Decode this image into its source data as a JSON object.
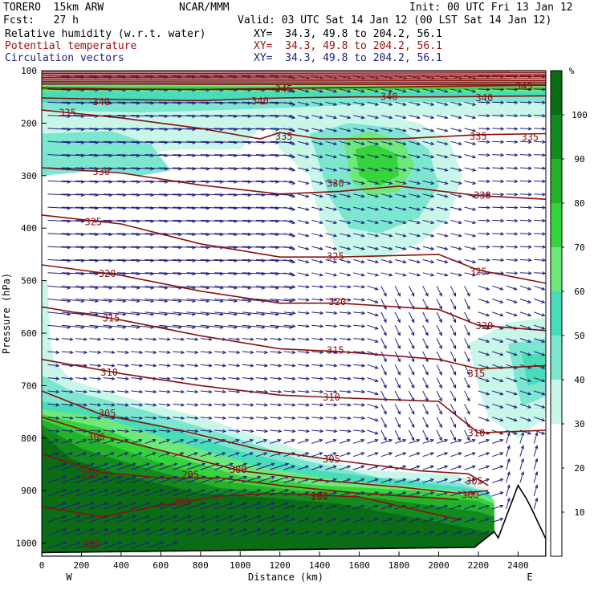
{
  "header": {
    "model": "TORERO  15km ARW",
    "center": "NCAR/MMM",
    "init": "Init: 00 UTC Fri 13 Jan 12",
    "fcst": "Fcst:   27 h",
    "valid": "Valid: 03 UTC Sat 14 Jan 12 (00 LST Sat 14 Jan 12)",
    "fields": [
      {
        "name": "Relative humidity (w.r.t. water)",
        "xy": "XY=  34.3, 49.8 to 204.2, 56.1",
        "color": "#000000"
      },
      {
        "name": "Potential temperature",
        "xy": "XY=  34.3, 49.8 to 204.2, 56.1",
        "color": "#a01010"
      },
      {
        "name": "Circulation vectors",
        "xy": "XY=  34.3, 49.8 to 204.2, 56.1",
        "color": "#202080"
      }
    ]
  },
  "chart_data": {
    "type": "cross-section",
    "xlabel": "Distance (km)",
    "ylabel": "Pressure (hPa)",
    "x_ticks": [
      0,
      200,
      400,
      600,
      800,
      1000,
      1200,
      1400,
      1600,
      1800,
      2000,
      2200,
      2400
    ],
    "x_range": [
      0,
      2540
    ],
    "y_ticks": [
      100,
      200,
      300,
      400,
      500,
      600,
      700,
      800,
      900,
      1000
    ],
    "y_range": [
      100,
      1025
    ],
    "end_labels": {
      "left": "W",
      "right": "E"
    },
    "colorbar": {
      "unit": "%",
      "ticks": [
        10,
        20,
        30,
        40,
        50,
        60,
        70,
        80,
        90,
        100
      ],
      "levels": [
        {
          "from": 0,
          "to": 30,
          "color": "#ffffff"
        },
        {
          "from": 30,
          "to": 40,
          "color": "#c8f7e9"
        },
        {
          "from": 40,
          "to": 50,
          "color": "#7de6cf"
        },
        {
          "from": 50,
          "to": 60,
          "color": "#48dcb8"
        },
        {
          "from": 60,
          "to": 70,
          "color": "#6ee87b"
        },
        {
          "from": 70,
          "to": 80,
          "color": "#35d43a"
        },
        {
          "from": 80,
          "to": 90,
          "color": "#22b32a"
        },
        {
          "from": 90,
          "to": 100,
          "color": "#128a1e"
        },
        {
          "from": 100,
          "to": 110,
          "color": "#0a6c14"
        }
      ]
    },
    "theta_contours": [
      {
        "value": 345,
        "pts": [
          [
            0,
            133
          ],
          [
            400,
            135
          ],
          [
            800,
            136
          ],
          [
            1200,
            134
          ],
          [
            1600,
            132
          ],
          [
            2000,
            130
          ],
          [
            2540,
            128
          ]
        ],
        "labels": [
          [
            1220,
            135
          ],
          [
            2430,
            130
          ]
        ]
      },
      {
        "value": 340,
        "pts": [
          [
            0,
            152
          ],
          [
            400,
            155
          ],
          [
            800,
            157
          ],
          [
            1200,
            152
          ],
          [
            1600,
            150
          ],
          [
            2000,
            150
          ],
          [
            2540,
            148
          ]
        ],
        "labels": [
          [
            300,
            160
          ],
          [
            1100,
            158
          ],
          [
            1750,
            150
          ],
          [
            2230,
            152
          ]
        ]
      },
      {
        "value": 335,
        "pts": [
          [
            0,
            175
          ],
          [
            400,
            190
          ],
          [
            800,
            210
          ],
          [
            1100,
            230
          ],
          [
            1200,
            218
          ],
          [
            1400,
            230
          ],
          [
            1800,
            230
          ],
          [
            2200,
            222
          ],
          [
            2540,
            220
          ]
        ],
        "labels": [
          [
            130,
            180
          ],
          [
            1220,
            225
          ],
          [
            2200,
            225
          ],
          [
            2460,
            227
          ]
        ]
      },
      {
        "value": 330,
        "pts": [
          [
            0,
            285
          ],
          [
            400,
            295
          ],
          [
            800,
            318
          ],
          [
            1200,
            335
          ],
          [
            1500,
            330
          ],
          [
            1800,
            320
          ],
          [
            2200,
            338
          ],
          [
            2540,
            345
          ]
        ],
        "labels": [
          [
            300,
            293
          ],
          [
            1480,
            315
          ],
          [
            2220,
            338
          ]
        ]
      },
      {
        "value": 325,
        "pts": [
          [
            0,
            375
          ],
          [
            400,
            392
          ],
          [
            800,
            430
          ],
          [
            1200,
            455
          ],
          [
            1500,
            455
          ],
          [
            2000,
            450
          ],
          [
            2200,
            480
          ],
          [
            2540,
            505
          ]
        ],
        "labels": [
          [
            260,
            388
          ],
          [
            1480,
            454
          ],
          [
            2200,
            483
          ]
        ]
      },
      {
        "value": 320,
        "pts": [
          [
            0,
            470
          ],
          [
            400,
            490
          ],
          [
            800,
            520
          ],
          [
            1200,
            543
          ],
          [
            1500,
            543
          ],
          [
            2000,
            555
          ],
          [
            2200,
            585
          ],
          [
            2540,
            595
          ]
        ],
        "labels": [
          [
            330,
            487
          ],
          [
            1490,
            540
          ],
          [
            2230,
            586
          ]
        ]
      },
      {
        "value": 315,
        "pts": [
          [
            0,
            550
          ],
          [
            400,
            575
          ],
          [
            800,
            605
          ],
          [
            1200,
            630
          ],
          [
            1500,
            635
          ],
          [
            2000,
            650
          ],
          [
            2200,
            668
          ],
          [
            2540,
            662
          ]
        ],
        "labels": [
          [
            350,
            572
          ],
          [
            1480,
            633
          ],
          [
            2190,
            677
          ]
        ]
      },
      {
        "value": 310,
        "pts": [
          [
            0,
            650
          ],
          [
            400,
            677
          ],
          [
            800,
            700
          ],
          [
            1200,
            718
          ],
          [
            1500,
            723
          ],
          [
            2000,
            730
          ],
          [
            2200,
            790
          ],
          [
            2540,
            785
          ]
        ],
        "labels": [
          [
            340,
            675
          ],
          [
            1460,
            722
          ],
          [
            2190,
            790
          ]
        ]
      },
      {
        "value": 305,
        "pts": [
          [
            0,
            710
          ],
          [
            300,
            755
          ],
          [
            700,
            785
          ],
          [
            1100,
            822
          ],
          [
            1500,
            843
          ],
          [
            1900,
            862
          ],
          [
            2150,
            868
          ],
          [
            2250,
            890
          ]
        ],
        "labels": [
          [
            330,
            753
          ],
          [
            1460,
            840
          ],
          [
            2180,
            882
          ]
        ]
      },
      {
        "value": 300,
        "pts": [
          [
            0,
            760
          ],
          [
            300,
            795
          ],
          [
            700,
            833
          ],
          [
            1000,
            862
          ],
          [
            1400,
            880
          ],
          [
            1800,
            893
          ],
          [
            2100,
            905
          ],
          [
            2250,
            900
          ]
        ],
        "labels": [
          [
            275,
            798
          ],
          [
            990,
            860
          ],
          [
            2160,
            908
          ]
        ]
      },
      {
        "value": 295,
        "pts": [
          [
            0,
            830
          ],
          [
            300,
            865
          ],
          [
            600,
            876
          ],
          [
            900,
            876
          ],
          [
            1200,
            890
          ],
          [
            1600,
            905
          ],
          [
            2100,
            917
          ]
        ],
        "labels": [
          [
            240,
            868
          ],
          [
            750,
            870
          ]
        ]
      },
      {
        "value": 290,
        "pts": [
          [
            0,
            930
          ],
          [
            300,
            950
          ],
          [
            600,
            928
          ],
          [
            900,
            910
          ],
          [
            1200,
            905
          ],
          [
            1600,
            912
          ],
          [
            2100,
            955
          ]
        ],
        "labels": [
          [
            700,
            922
          ],
          [
            1400,
            910
          ]
        ]
      }
    ],
    "theta_extra_labels": [
      {
        "text": "300",
        "x": 1400,
        "y": 912
      },
      {
        "text": "290",
        "x": 250,
        "y": 1001
      },
      {
        "text": "287",
        "x": 1250,
        "y": 1018
      },
      {
        "text": "287",
        "x": 1570,
        "y": 1018
      }
    ]
  }
}
